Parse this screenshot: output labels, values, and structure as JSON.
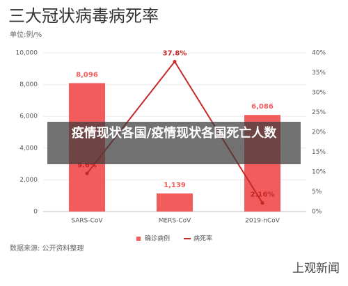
{
  "chart_data": {
    "type": "bar-line",
    "title": "三大冠状病毒病死率",
    "subtitle": "单位:例/%",
    "categories": [
      "SARS-CoV",
      "MERS-CoV",
      "2019-nCoV"
    ],
    "series": [
      {
        "name": "确诊病例",
        "type": "bar",
        "color": "#f25c5c",
        "values": [
          8096,
          1139,
          6086
        ],
        "value_labels": [
          "8,096",
          "1,139",
          "6,086"
        ]
      },
      {
        "name": "病死率",
        "type": "line",
        "axis": "y2",
        "color": "#c62828",
        "values": [
          9.6,
          37.8,
          2.16
        ],
        "value_labels": [
          "9.6%",
          "37.8%",
          "2.16%"
        ]
      }
    ],
    "ylim": [
      0,
      10000
    ],
    "yticks": [
      0,
      {
        "value": 2000,
        "label": "2,000"
      },
      {
        "value": 4000,
        "label": "4,000"
      },
      {
        "value": 6000,
        "label": "6,000"
      },
      {
        "value": 8000,
        "label": "8,000"
      },
      {
        "value": 10000,
        "label": "10,000"
      }
    ],
    "y2lim": [
      0,
      40
    ],
    "y2ticks": [
      {
        "value": 0,
        "label": "0%"
      },
      {
        "value": 5,
        "label": "5%"
      },
      {
        "value": 10,
        "label": "10%"
      },
      {
        "value": 15,
        "label": "15%"
      },
      {
        "value": 20,
        "label": "20%"
      },
      {
        "value": 25,
        "label": "25%"
      },
      {
        "value": 30,
        "label": "30%"
      },
      {
        "value": 35,
        "label": "35%"
      },
      {
        "value": 40,
        "label": "40%"
      }
    ],
    "grid": true,
    "source": "数据来源: 公开资料整理"
  },
  "logo": "上观新闻",
  "banner": "疫情现状各国/疫情现状各国死亡人数"
}
